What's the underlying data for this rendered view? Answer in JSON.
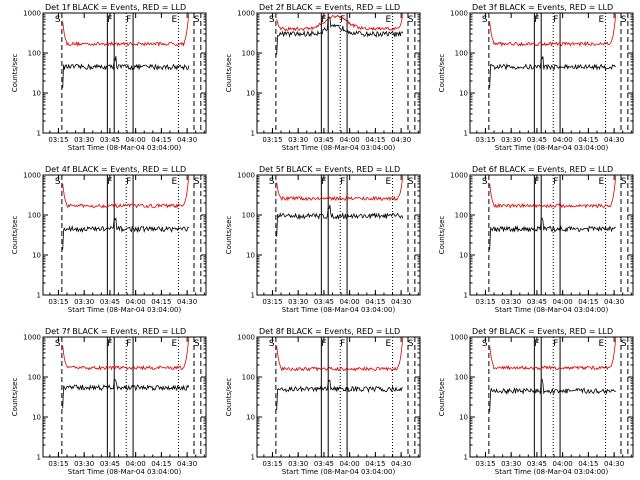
{
  "chart_data": {
    "type": "line",
    "scale": "log",
    "ylim": [
      1,
      1000
    ],
    "yticks": [
      "1",
      "10",
      "100",
      "1000"
    ],
    "x_time_range": [
      "03:06",
      "04:41"
    ],
    "xticks": [
      "03:15",
      "03:30",
      "03:45",
      "04:00",
      "04:15",
      "04:30"
    ],
    "ylabel": "Counts/sec",
    "xlabel": "Start Time (08-Mar-04 03:04:00)",
    "marker_labels": [
      "S",
      "F",
      "F",
      "E",
      "S"
    ],
    "colors": {
      "events": "#000000",
      "lld": "#e00000"
    },
    "panels": [
      {
        "title": "Det 1f BLACK = Events, RED = LLD",
        "events_level": 45,
        "lld_level": 170,
        "lld_edge_peak": 1000
      },
      {
        "title": "Det 2f BLACK = Events, RED = LLD",
        "events_level": 300,
        "lld_level": 400,
        "lld_edge_peak": 1000
      },
      {
        "title": "Det 3f BLACK = Events, RED = LLD",
        "events_level": 45,
        "lld_level": 170,
        "lld_edge_peak": 1000
      },
      {
        "title": "Det 4f BLACK = Events, RED = LLD",
        "events_level": 45,
        "lld_level": 170,
        "lld_edge_peak": 1000
      },
      {
        "title": "Det 5f BLACK = Events, RED = LLD",
        "events_level": 95,
        "lld_level": 260,
        "lld_edge_peak": 1000
      },
      {
        "title": "Det 6f BLACK = Events, RED = LLD",
        "events_level": 45,
        "lld_level": 170,
        "lld_edge_peak": 1000
      },
      {
        "title": "Det 7f BLACK = Events, RED = LLD",
        "events_level": 55,
        "lld_level": 170,
        "lld_edge_peak": 1000
      },
      {
        "title": "Det 8f BLACK = Events, RED = LLD",
        "events_level": 50,
        "lld_level": 160,
        "lld_edge_peak": 1000
      },
      {
        "title": "Det 9f BLACK = Events, RED = LLD",
        "events_level": 45,
        "lld_level": 170,
        "lld_edge_peak": 1000
      }
    ]
  }
}
